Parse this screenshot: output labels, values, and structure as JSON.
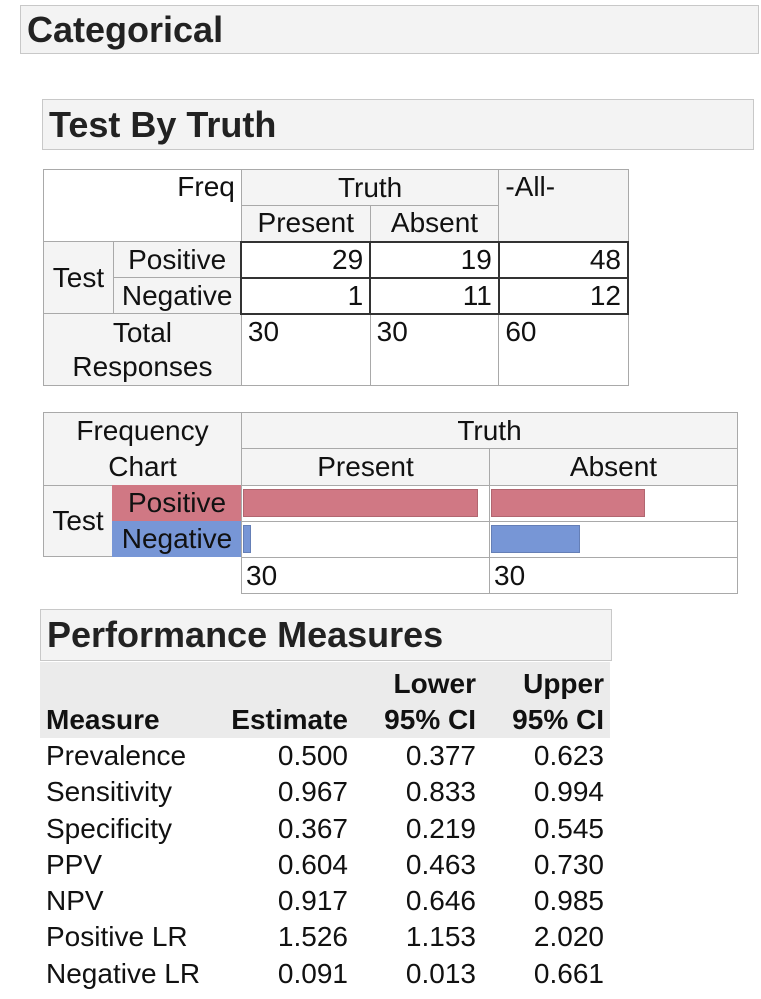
{
  "outline": {
    "title": "Categorical"
  },
  "contingency": {
    "title": "Test By Truth",
    "corner_label": "Freq",
    "col_group": "Truth",
    "all_label": "-All-",
    "cols": [
      "Present",
      "Absent"
    ],
    "row_group": "Test",
    "rows": [
      {
        "label": "Positive",
        "values": [
          "29",
          "19"
        ],
        "all": "48"
      },
      {
        "label": "Negative",
        "values": [
          "1",
          "11"
        ],
        "all": "12"
      }
    ],
    "total_label": "Total Responses",
    "totals": [
      "30",
      "30",
      "60"
    ]
  },
  "freq_chart": {
    "corner_label_1": "Frequency",
    "corner_label_2": "Chart",
    "col_group": "Truth",
    "cols": [
      "Present",
      "Absent"
    ],
    "row_group": "Test",
    "rows": [
      {
        "label": "Positive",
        "color": "#d07884"
      },
      {
        "label": "Negative",
        "color": "#7796d6"
      }
    ],
    "col_totals": [
      "30",
      "30"
    ]
  },
  "chart_data": {
    "type": "bar",
    "categories": [
      "Present",
      "Absent"
    ],
    "series": [
      {
        "name": "Positive",
        "values": [
          29,
          19
        ]
      },
      {
        "name": "Negative",
        "values": [
          1,
          11
        ]
      }
    ],
    "max": 30
  },
  "performance": {
    "title": "Performance Measures",
    "headers": {
      "measure": "Measure",
      "estimate": "Estimate",
      "lower_1": "Lower",
      "lower_2": "95% CI",
      "upper_1": "Upper",
      "upper_2": "95% CI"
    },
    "rows": [
      {
        "measure": "Prevalence",
        "estimate": "0.500",
        "lower": "0.377",
        "upper": "0.623"
      },
      {
        "measure": "Sensitivity",
        "estimate": "0.967",
        "lower": "0.833",
        "upper": "0.994"
      },
      {
        "measure": "Specificity",
        "estimate": "0.367",
        "lower": "0.219",
        "upper": "0.545"
      },
      {
        "measure": "PPV",
        "estimate": "0.604",
        "lower": "0.463",
        "upper": "0.730"
      },
      {
        "measure": "NPV",
        "estimate": "0.917",
        "lower": "0.646",
        "upper": "0.985"
      },
      {
        "measure": "Positive LR",
        "estimate": "1.526",
        "lower": "1.153",
        "upper": "2.020"
      },
      {
        "measure": "Negative LR",
        "estimate": "0.091",
        "lower": "0.013",
        "upper": "0.661"
      }
    ]
  }
}
